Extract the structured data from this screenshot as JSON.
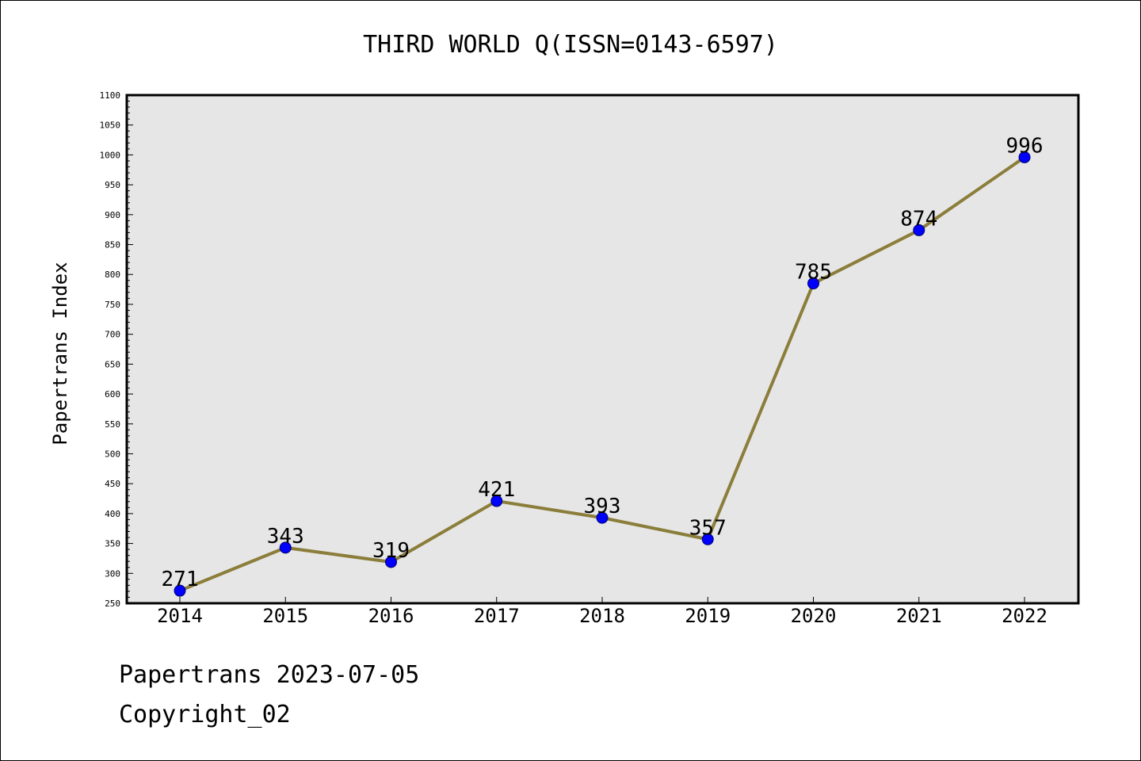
{
  "chart_data": {
    "type": "line",
    "title": "THIRD WORLD Q(ISSN=0143-6597)",
    "xlabel": "",
    "ylabel": "Papertrans Index",
    "x": [
      "2014",
      "2015",
      "2016",
      "2017",
      "2018",
      "2019",
      "2020",
      "2021",
      "2022"
    ],
    "series": [
      {
        "values": [
          271,
          343,
          319,
          421,
          393,
          357,
          785,
          874,
          996
        ]
      }
    ],
    "ylim": [
      250,
      1100
    ],
    "yticks": [
      250,
      300,
      350,
      400,
      450,
      500,
      550,
      600,
      650,
      700,
      750,
      800,
      850,
      900,
      950,
      1000,
      1050,
      1100
    ],
    "grid": false,
    "legend": "none",
    "colors": {
      "line": "#8B7D3A",
      "marker": "#0000FF",
      "plot_bg": "#E6E6E6"
    }
  },
  "footer": {
    "line1": "Papertrans 2023-07-05",
    "line2": "Copyright_02"
  }
}
